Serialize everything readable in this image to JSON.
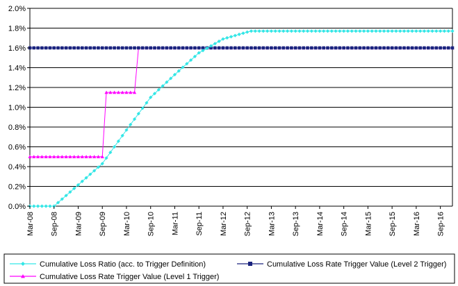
{
  "chart_data": {
    "type": "line",
    "title": "",
    "xlabel": "",
    "ylabel": "",
    "ylim": [
      0,
      0.02
    ],
    "y_tick_labels": [
      "0.0%",
      "0.2%",
      "0.4%",
      "0.6%",
      "0.8%",
      "1.0%",
      "1.2%",
      "1.4%",
      "1.6%",
      "1.8%",
      "2.0%"
    ],
    "x_tick_labels": [
      "Mar-08",
      "Sep-08",
      "Mar-09",
      "Sep-09",
      "Mar-10",
      "Sep-10",
      "Mar-11",
      "Sep-11",
      "Mar-12",
      "Sep-12",
      "Mar-13",
      "Sep-13",
      "Mar-14",
      "Sep-14",
      "Mar-15",
      "Sep-15",
      "Mar-16",
      "Sep-16"
    ],
    "x_range": [
      "Mar-08",
      "Dec-16"
    ],
    "grid": "horizontal",
    "legend_position": "bottom",
    "series": [
      {
        "name": "Cumulative Loss Ratio (acc. to Trigger Definition)",
        "color": "#33e6e6",
        "marker": "diamond",
        "points": [
          [
            "Mar-08",
            0.0
          ],
          [
            "Sep-08",
            0.0
          ],
          [
            "Sep-09",
            0.0043
          ],
          [
            "Mar-10",
            0.0077
          ],
          [
            "Sep-10",
            0.011
          ],
          [
            "Mar-11",
            0.0133
          ],
          [
            "Sep-11",
            0.0155
          ],
          [
            "Mar-12",
            0.0169
          ],
          [
            "Sep-12",
            0.0176
          ],
          [
            "Oct-12",
            0.0177
          ],
          [
            "Dec-16",
            0.0177
          ]
        ]
      },
      {
        "name": "Cumulative Loss Rate Trigger Value (Level 2 Trigger)",
        "color": "#1a237e",
        "marker": "square",
        "points": [
          [
            "Mar-08",
            0.016
          ],
          [
            "Dec-16",
            0.016
          ]
        ]
      },
      {
        "name": "Cumulative Loss Rate Trigger Value (Level 1 Trigger)",
        "color": "#ff00ff",
        "marker": "triangle",
        "points": [
          [
            "Mar-08",
            0.005
          ],
          [
            "Sep-09",
            0.005
          ],
          [
            "Oct-09",
            0.0115
          ],
          [
            "May-10",
            0.0115
          ],
          [
            "Jun-10",
            0.016
          ],
          [
            "Dec-16",
            0.016
          ]
        ]
      }
    ]
  }
}
